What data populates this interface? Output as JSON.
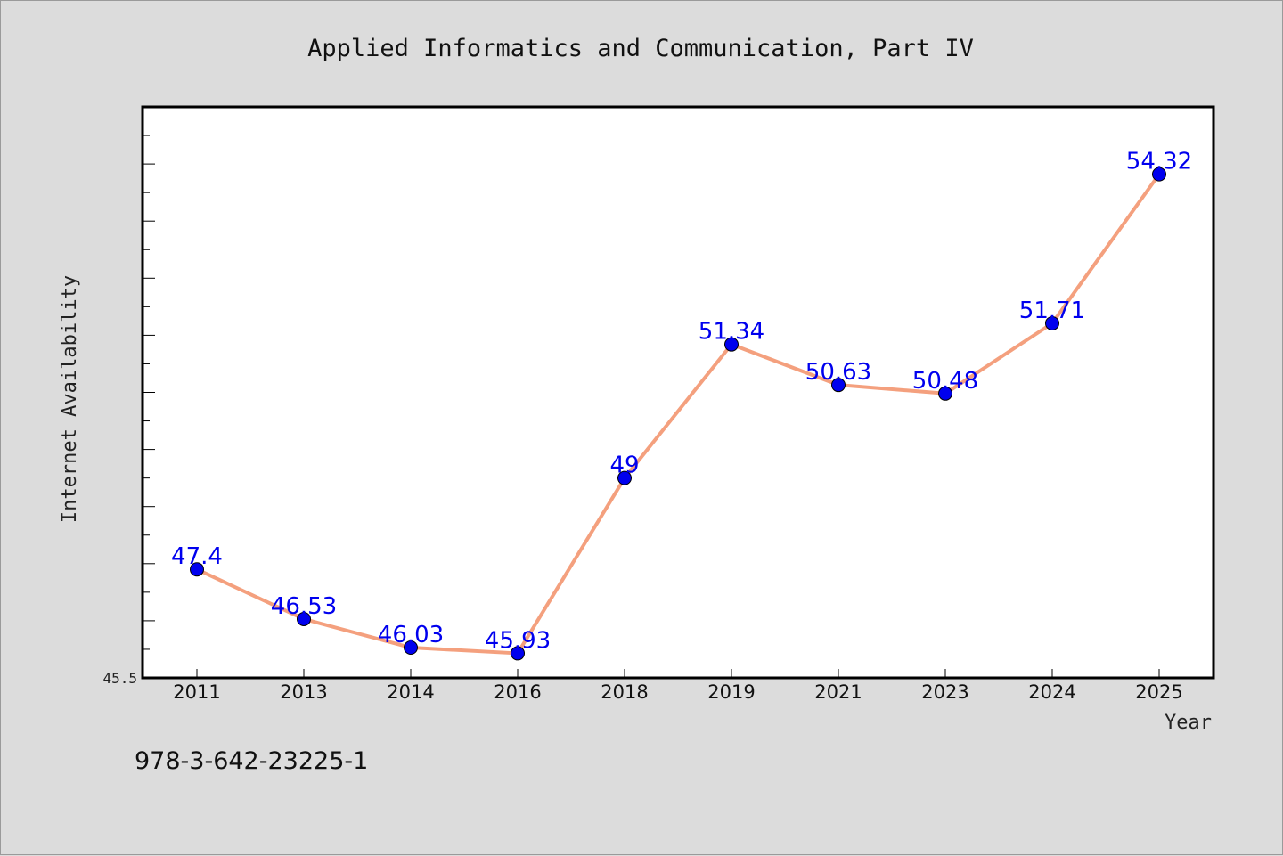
{
  "chart_data": {
    "type": "line",
    "title": "Applied Informatics and Communication, Part IV",
    "xlabel": "Year",
    "ylabel": "Internet Availability",
    "categories": [
      "2011",
      "2013",
      "2014",
      "2016",
      "2018",
      "2019",
      "2021",
      "2023",
      "2024",
      "2025"
    ],
    "series": [
      {
        "values": [
          47.4,
          46.53,
          46.03,
          45.93,
          49,
          51.34,
          50.63,
          50.48,
          51.71,
          54.32
        ],
        "data_labels": [
          "47.4",
          "46.53",
          "46.03",
          "45.93",
          "49",
          "51.34",
          "50.63",
          "50.48",
          "51.71",
          "54.32"
        ]
      }
    ],
    "ylim": [
      45.5,
      55.5
    ],
    "y_min_label": "45.5",
    "grid": false,
    "legend": "none",
    "line_color": "#f4a07e",
    "marker_color": "#0000ee",
    "label_color": "#0000ee"
  },
  "footer": {
    "isbn": "978-3-642-23225-1"
  }
}
